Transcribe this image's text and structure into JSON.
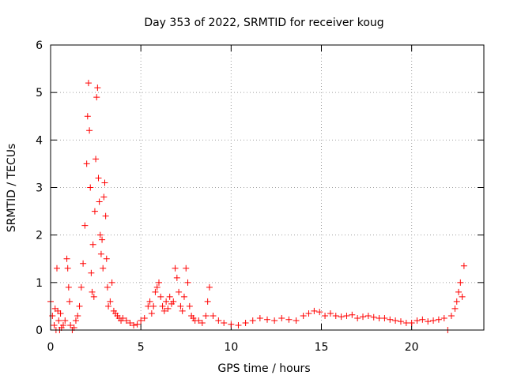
{
  "chart_data": {
    "type": "scatter",
    "title": "Day 353 of 2022, SRMTID for receiver koug",
    "xlabel": "GPS time / hours",
    "ylabel": "SRMTID / TECUs",
    "xlim": [
      0,
      24
    ],
    "ylim": [
      0,
      6
    ],
    "xticks": [
      0,
      5,
      10,
      15,
      20
    ],
    "yticks": [
      0,
      1,
      2,
      3,
      4,
      5,
      6
    ],
    "grid": true,
    "marker": "+",
    "color": "#ff0000",
    "series": [
      {
        "name": "SRMTID",
        "x": [
          0.0,
          0.1,
          0.2,
          0.25,
          0.3,
          0.35,
          0.4,
          0.45,
          0.5,
          0.55,
          0.6,
          0.7,
          0.8,
          0.9,
          0.95,
          1.0,
          1.05,
          1.1,
          1.2,
          1.3,
          1.4,
          1.5,
          1.6,
          1.7,
          1.8,
          1.9,
          2.0,
          2.05,
          2.1,
          2.15,
          2.2,
          2.25,
          2.3,
          2.35,
          2.4,
          2.45,
          2.5,
          2.55,
          2.6,
          2.65,
          2.7,
          2.75,
          2.8,
          2.85,
          2.9,
          2.95,
          3.0,
          3.05,
          3.1,
          3.15,
          3.2,
          3.3,
          3.4,
          3.5,
          3.6,
          3.7,
          3.8,
          3.9,
          4.0,
          4.2,
          4.4,
          4.6,
          4.8,
          5.0,
          5.2,
          5.4,
          5.5,
          5.6,
          5.7,
          5.8,
          5.9,
          6.0,
          6.1,
          6.2,
          6.3,
          6.4,
          6.5,
          6.6,
          6.7,
          6.8,
          6.9,
          7.0,
          7.1,
          7.2,
          7.3,
          7.4,
          7.5,
          7.6,
          7.7,
          7.8,
          7.9,
          8.0,
          8.2,
          8.4,
          8.6,
          8.7,
          8.8,
          9.0,
          9.3,
          9.6,
          10.0,
          10.4,
          10.8,
          11.2,
          11.6,
          12.0,
          12.4,
          12.8,
          13.2,
          13.6,
          14.0,
          14.3,
          14.6,
          14.9,
          15.2,
          15.5,
          15.8,
          16.1,
          16.4,
          16.7,
          17.0,
          17.3,
          17.6,
          17.9,
          18.2,
          18.5,
          18.8,
          19.1,
          19.4,
          19.7,
          20.0,
          20.3,
          20.6,
          20.9,
          21.2,
          21.5,
          21.8,
          22.0,
          22.2,
          22.4,
          22.5,
          22.6,
          22.7,
          22.8,
          22.9
        ],
        "y": [
          0.6,
          0.3,
          0.1,
          0.45,
          0.0,
          1.3,
          0.4,
          0.2,
          0.0,
          0.35,
          0.05,
          0.1,
          0.2,
          1.5,
          1.3,
          0.9,
          0.6,
          0.1,
          0.0,
          0.05,
          0.2,
          0.3,
          0.5,
          0.9,
          1.4,
          2.2,
          3.5,
          4.5,
          5.2,
          4.2,
          3.0,
          1.2,
          0.8,
          1.8,
          0.7,
          2.5,
          3.6,
          4.9,
          5.1,
          3.2,
          2.7,
          2.0,
          1.6,
          1.9,
          1.3,
          2.8,
          3.1,
          2.4,
          1.5,
          0.9,
          0.5,
          0.6,
          1.0,
          0.4,
          0.35,
          0.3,
          0.25,
          0.2,
          0.25,
          0.2,
          0.15,
          0.1,
          0.12,
          0.2,
          0.25,
          0.5,
          0.6,
          0.35,
          0.5,
          0.8,
          0.9,
          1.0,
          0.7,
          0.5,
          0.4,
          0.6,
          0.45,
          0.7,
          0.55,
          0.6,
          1.3,
          1.1,
          0.8,
          0.5,
          0.4,
          0.7,
          1.3,
          1.0,
          0.5,
          0.3,
          0.25,
          0.2,
          0.2,
          0.15,
          0.3,
          0.6,
          0.9,
          0.3,
          0.2,
          0.15,
          0.12,
          0.1,
          0.15,
          0.2,
          0.25,
          0.22,
          0.2,
          0.25,
          0.22,
          0.2,
          0.3,
          0.35,
          0.4,
          0.38,
          0.3,
          0.35,
          0.3,
          0.28,
          0.3,
          0.32,
          0.25,
          0.28,
          0.3,
          0.27,
          0.25,
          0.25,
          0.22,
          0.2,
          0.18,
          0.15,
          0.15,
          0.2,
          0.22,
          0.18,
          0.2,
          0.22,
          0.25,
          0.0,
          0.3,
          0.45,
          0.6,
          0.8,
          1.0,
          0.7,
          1.35
        ]
      }
    ]
  }
}
